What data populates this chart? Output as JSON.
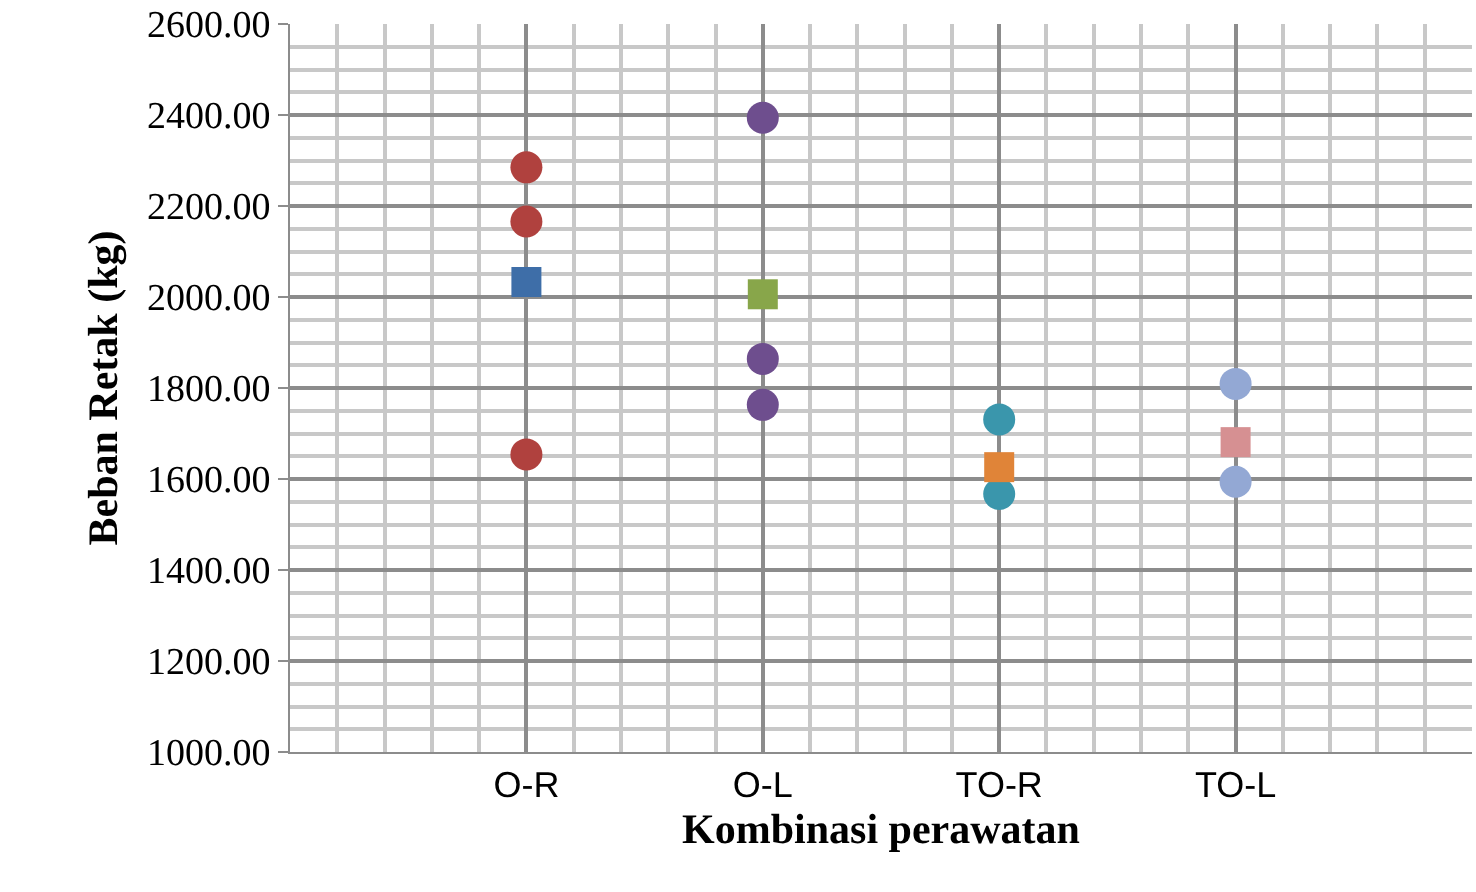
{
  "chart_data": {
    "type": "scatter",
    "xlabel": "Kombinasi perawatan",
    "ylabel": "Beban Retak (kg)",
    "categories": [
      "O-R",
      "O-L",
      "TO-R",
      "TO-L"
    ],
    "ylim": [
      1000,
      2600
    ],
    "yticks": [
      {
        "value": 1000,
        "label": "1000.00"
      },
      {
        "value": 1200,
        "label": "1200.00"
      },
      {
        "value": 1400,
        "label": "1400.00"
      },
      {
        "value": 1600,
        "label": "1600.00"
      },
      {
        "value": 1800,
        "label": "1800.00"
      },
      {
        "value": 2000,
        "label": "2000.00"
      },
      {
        "value": 2200,
        "label": "2200.00"
      },
      {
        "value": 2400,
        "label": "2400.00"
      },
      {
        "value": 2600,
        "label": "2600.00"
      }
    ],
    "grid": true,
    "series": [
      {
        "color": "#b0413e",
        "marker": "circle",
        "x": [
          "O-R",
          "O-R",
          "O-R"
        ],
        "values": [
          2285,
          2166,
          1654
        ]
      },
      {
        "color": "#3e6ea8",
        "marker": "square",
        "x": [
          "O-R"
        ],
        "values": [
          2033
        ]
      },
      {
        "color": "#6e4e8e",
        "marker": "circle",
        "x": [
          "O-L",
          "O-L",
          "O-L"
        ],
        "values": [
          2394,
          1864,
          1763
        ]
      },
      {
        "color": "#88a64a",
        "marker": "square",
        "x": [
          "O-L"
        ],
        "values": [
          2006
        ]
      },
      {
        "color": "#3a96ac",
        "marker": "circle",
        "x": [
          "TO-R",
          "TO-R"
        ],
        "values": [
          1731,
          1567
        ]
      },
      {
        "color": "#e08438",
        "marker": "square",
        "x": [
          "TO-R"
        ],
        "values": [
          1626
        ]
      },
      {
        "color": "#93a8d4",
        "marker": "circle",
        "x": [
          "TO-L",
          "TO-L"
        ],
        "values": [
          1809,
          1594
        ]
      },
      {
        "color": "#d69092",
        "marker": "square",
        "x": [
          "TO-L"
        ],
        "values": [
          1681
        ]
      }
    ]
  }
}
